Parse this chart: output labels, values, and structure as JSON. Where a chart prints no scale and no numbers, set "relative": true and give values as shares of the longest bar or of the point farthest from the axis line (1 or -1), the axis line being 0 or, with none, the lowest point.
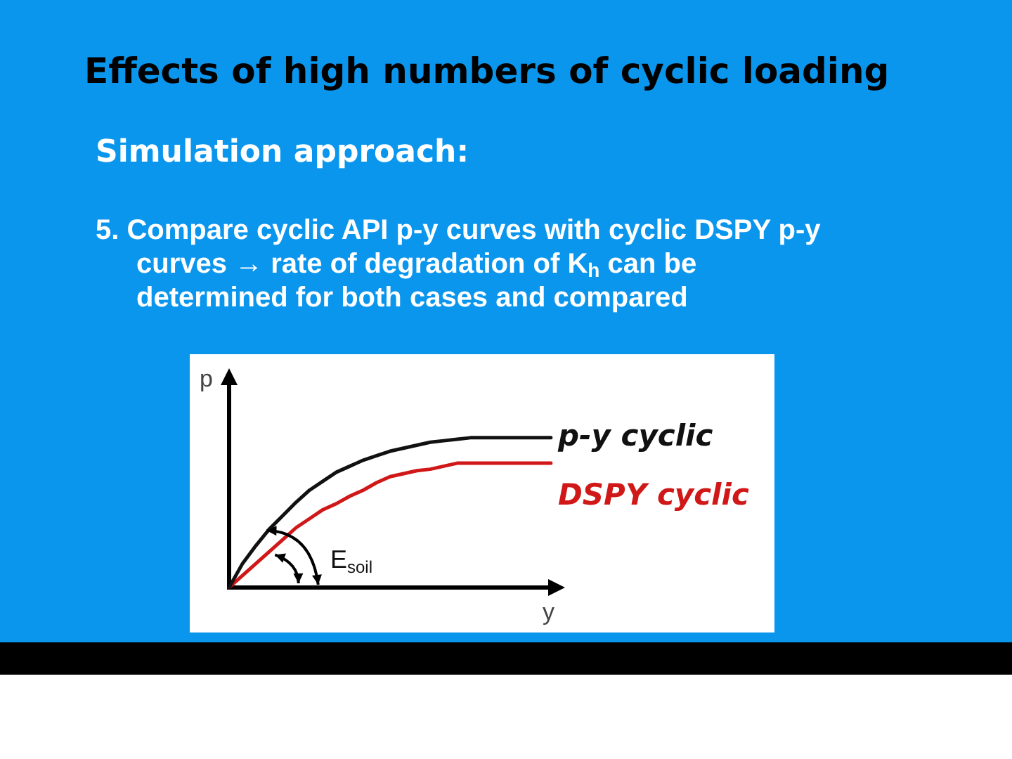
{
  "chart_data": {
    "type": "line",
    "title": "Effects of high numbers of cyclic loading",
    "subtitle": "Simulation approach:",
    "xlabel": "y",
    "ylabel": "p",
    "relative": true,
    "categories": [
      null,
      null,
      null,
      null,
      null,
      null,
      null,
      null,
      null,
      null,
      null,
      null,
      null,
      null,
      null,
      null,
      null,
      null,
      null,
      null,
      null,
      null,
      null,
      null,
      null
    ],
    "series": [
      {
        "name": "p-y cyclic",
        "color": "#111111",
        "values": [
          0,
          0.16,
          0.28,
          0.39,
          0.48,
          0.57,
          0.65,
          0.71,
          0.77,
          0.81,
          0.85,
          0.88,
          0.91,
          0.93,
          0.95,
          0.97,
          0.98,
          0.99,
          1,
          1,
          1,
          1,
          1,
          1,
          1
        ]
      },
      {
        "name": "DSPY cyclic",
        "color": "#d01818",
        "values": [
          0,
          0.08,
          0.16,
          0.24,
          0.32,
          0.4,
          0.46,
          0.52,
          0.56,
          0.61,
          0.65,
          0.7,
          0.74,
          0.76,
          0.78,
          0.79,
          0.81,
          0.83,
          0.83,
          0.83,
          0.83,
          0.83,
          0.83,
          0.83,
          0.83
        ]
      }
    ],
    "annotations": [
      "5. Compare cyclic API p-y curves with cyclic DSPY p-y curves → rate of degradation of K$_{h}$ can be determined for both cases and compared",
      "E$_{soil}$"
    ]
  }
}
